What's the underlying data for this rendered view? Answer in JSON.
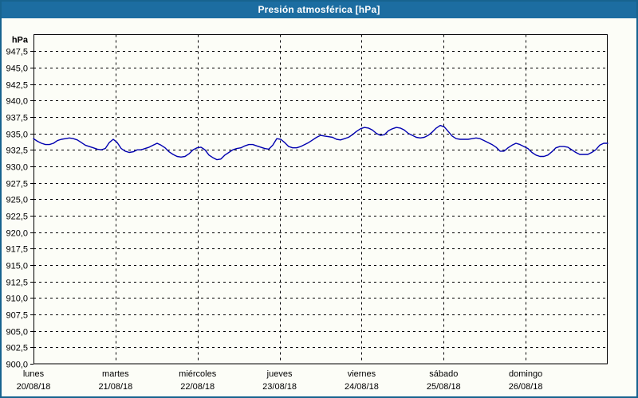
{
  "window": {
    "title": "Presión atmosférica [hPa]"
  },
  "colors": {
    "titlebar_bg": "#1c6da1",
    "titlebar_text": "#ffffff",
    "widget_border": "#17638f",
    "widget_bg": "#fcfdf7",
    "plot_frame": "#000000",
    "gridline": "#000000",
    "series_line": "#0000b0",
    "axis_text": "#000000"
  },
  "y_axis": {
    "unit_label": "hPa",
    "min": 900,
    "max": 950,
    "tick_step": 2.5,
    "decimal_separator": ",",
    "tick_labels": [
      "947,5",
      "945,0",
      "942,5",
      "940,0",
      "937,5",
      "935,0",
      "932,5",
      "930,0",
      "927,5",
      "925,0",
      "922,5",
      "920,0",
      "917,5",
      "915,0",
      "912,5",
      "910,0",
      "907,5",
      "905,0",
      "902,5",
      "900,0"
    ]
  },
  "x_axis": {
    "days": [
      {
        "name": "lunes",
        "date": "20/08/18"
      },
      {
        "name": "martes",
        "date": "21/08/18"
      },
      {
        "name": "miércoles",
        "date": "22/08/18"
      },
      {
        "name": "jueves",
        "date": "23/08/18"
      },
      {
        "name": "viernes",
        "date": "24/08/18"
      },
      {
        "name": "sábado",
        "date": "25/08/18"
      },
      {
        "name": "domingo",
        "date": "26/08/18"
      }
    ]
  },
  "chart_data": {
    "type": "line",
    "title": "Presión atmosférica [hPa]",
    "ylabel": "hPa",
    "ylim": [
      900,
      950
    ],
    "grid": "dashed",
    "x_range_days": [
      0,
      7
    ],
    "x_tick_labels": [
      "lunes 20/08/18",
      "martes 21/08/18",
      "miércoles 22/08/18",
      "jueves 23/08/18",
      "viernes 24/08/18",
      "sábado 25/08/18",
      "domingo 26/08/18"
    ],
    "series": [
      {
        "name": "Presión atmosférica",
        "unit": "hPa",
        "sampling": "uniform, 145 points from day 0 (lunes 20/08 00:00) to day 7 (lunes 27/08 00:00)",
        "values": [
          934.2,
          933.8,
          933.5,
          933.3,
          933.3,
          933.5,
          933.9,
          934.1,
          934.2,
          934.3,
          934.2,
          934.0,
          933.6,
          933.2,
          933.0,
          932.8,
          932.6,
          932.5,
          932.7,
          933.6,
          934.1,
          933.6,
          932.7,
          932.3,
          932.1,
          932.2,
          932.5,
          932.5,
          932.7,
          932.9,
          933.2,
          933.5,
          933.2,
          932.8,
          932.2,
          931.8,
          931.5,
          931.4,
          931.5,
          931.9,
          932.5,
          932.8,
          932.9,
          932.5,
          931.7,
          931.3,
          931.0,
          931.1,
          931.7,
          932.1,
          932.5,
          932.7,
          932.8,
          933.1,
          933.3,
          933.3,
          933.1,
          932.9,
          932.7,
          932.6,
          933.2,
          934.2,
          934.1,
          933.6,
          933.0,
          932.8,
          932.8,
          933.0,
          933.3,
          933.6,
          934.0,
          934.4,
          934.7,
          934.6,
          934.5,
          934.4,
          934.1,
          934.0,
          934.2,
          934.4,
          934.8,
          935.3,
          935.7,
          935.9,
          935.8,
          935.5,
          935.0,
          934.7,
          934.8,
          935.4,
          935.7,
          935.9,
          935.8,
          935.5,
          935.0,
          934.7,
          934.4,
          934.3,
          934.4,
          934.7,
          935.2,
          935.8,
          936.2,
          936.0,
          935.3,
          934.6,
          934.2,
          934.1,
          934.1,
          934.1,
          934.2,
          934.3,
          934.2,
          933.9,
          933.6,
          933.3,
          932.9,
          932.3,
          932.3,
          932.8,
          933.2,
          933.5,
          933.3,
          933.0,
          932.7,
          932.1,
          931.7,
          931.5,
          931.5,
          931.7,
          932.2,
          932.8,
          933.0,
          933.0,
          932.9,
          932.5,
          932.1,
          931.8,
          931.8,
          931.8,
          932.1,
          932.5,
          933.2,
          933.5,
          933.5
        ]
      }
    ]
  }
}
